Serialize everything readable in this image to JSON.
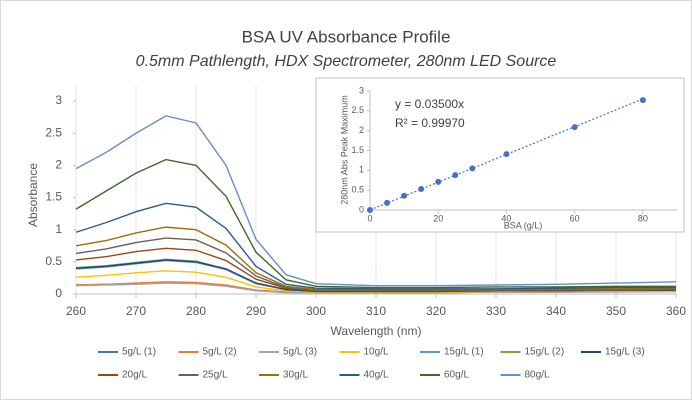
{
  "chart_data": [
    {
      "type": "line",
      "title": "BSA UV Absorbance Profile",
      "subtitle": "0.5mm Pathlength, HDX Spectrometer, 280nm LED Source",
      "x_label": "Wavelength (nm)",
      "y_label": "Absorbance",
      "x": [
        260,
        265,
        270,
        275,
        280,
        285,
        290,
        295,
        300,
        310,
        320,
        330,
        340,
        350,
        360
      ],
      "xlim": [
        260,
        360
      ],
      "xticks": [
        260,
        270,
        280,
        290,
        300,
        310,
        320,
        330,
        340,
        350,
        360
      ],
      "ylim": [
        0,
        3.25
      ],
      "yticks": [
        0,
        0.5,
        1,
        1.5,
        2,
        2.5,
        3
      ],
      "grid": true,
      "series": [
        {
          "name": "5g/L (1)",
          "color": "#4472c4",
          "values": [
            0.14,
            0.15,
            0.16,
            0.18,
            0.17,
            0.13,
            0.06,
            0.03,
            0.02,
            0.02,
            0.02,
            0.03,
            0.03,
            0.04,
            0.04
          ]
        },
        {
          "name": "5g/L (2)",
          "color": "#ed7d31",
          "values": [
            0.14,
            0.15,
            0.17,
            0.19,
            0.18,
            0.14,
            0.06,
            0.03,
            0.02,
            0.02,
            0.02,
            0.03,
            0.03,
            0.04,
            0.04
          ]
        },
        {
          "name": "5g/L (3)",
          "color": "#a5a5a5",
          "values": [
            0.13,
            0.14,
            0.15,
            0.17,
            0.16,
            0.12,
            0.05,
            0.02,
            0.02,
            0.02,
            0.02,
            0.03,
            0.03,
            0.03,
            0.04
          ]
        },
        {
          "name": "10g/L",
          "color": "#ffc000",
          "values": [
            0.26,
            0.29,
            0.33,
            0.36,
            0.34,
            0.26,
            0.11,
            0.05,
            0.03,
            0.03,
            0.03,
            0.04,
            0.04,
            0.05,
            0.05
          ]
        },
        {
          "name": "15g/L (1)",
          "color": "#5b9bd5",
          "values": [
            0.39,
            0.42,
            0.47,
            0.52,
            0.49,
            0.38,
            0.16,
            0.07,
            0.04,
            0.04,
            0.04,
            0.05,
            0.05,
            0.06,
            0.06
          ]
        },
        {
          "name": "15g/L (2)",
          "color": "#70ad47",
          "values": [
            0.41,
            0.44,
            0.49,
            0.54,
            0.51,
            0.39,
            0.17,
            0.07,
            0.04,
            0.04,
            0.04,
            0.05,
            0.05,
            0.06,
            0.06
          ]
        },
        {
          "name": "15g/L (3)",
          "color": "#264478",
          "values": [
            0.4,
            0.43,
            0.48,
            0.53,
            0.5,
            0.39,
            0.17,
            0.07,
            0.04,
            0.04,
            0.04,
            0.05,
            0.05,
            0.06,
            0.06
          ]
        },
        {
          "name": "20g/L",
          "color": "#9e480e",
          "values": [
            0.53,
            0.58,
            0.66,
            0.71,
            0.68,
            0.52,
            0.23,
            0.09,
            0.05,
            0.05,
            0.05,
            0.05,
            0.06,
            0.06,
            0.07
          ]
        },
        {
          "name": "25g/L",
          "color": "#636363",
          "values": [
            0.63,
            0.7,
            0.8,
            0.87,
            0.84,
            0.64,
            0.28,
            0.1,
            0.06,
            0.06,
            0.06,
            0.06,
            0.07,
            0.07,
            0.08
          ]
        },
        {
          "name": "30g/L",
          "color": "#997300",
          "values": [
            0.75,
            0.83,
            0.95,
            1.04,
            1.0,
            0.76,
            0.33,
            0.12,
            0.07,
            0.07,
            0.07,
            0.07,
            0.08,
            0.08,
            0.09
          ]
        },
        {
          "name": "40g/L",
          "color": "#255e91",
          "values": [
            0.96,
            1.11,
            1.28,
            1.41,
            1.35,
            1.02,
            0.43,
            0.15,
            0.09,
            0.08,
            0.08,
            0.08,
            0.09,
            0.1,
            0.1
          ]
        },
        {
          "name": "60g/L",
          "color": "#43682b",
          "values": [
            1.32,
            1.6,
            1.88,
            2.09,
            2.0,
            1.52,
            0.65,
            0.22,
            0.12,
            0.1,
            0.1,
            0.11,
            0.11,
            0.12,
            0.12
          ]
        },
        {
          "name": "80g/L",
          "color": "#698ed0",
          "values": [
            1.95,
            2.2,
            2.5,
            2.77,
            2.66,
            2.0,
            0.85,
            0.3,
            0.16,
            0.13,
            0.13,
            0.14,
            0.15,
            0.17,
            0.19
          ]
        }
      ]
    },
    {
      "type": "scatter",
      "x_label": "BSA (g/L)",
      "y_label": "280nm Abs Peak Maximum",
      "equation": "y = 0.03500x",
      "r_squared": "R² = 0.99970",
      "trendline_slope": 0.035,
      "color": "#4472c4",
      "x": [
        0,
        5,
        10,
        15,
        20,
        25,
        30,
        40,
        60,
        80
      ],
      "values": [
        0,
        0.18,
        0.36,
        0.53,
        0.71,
        0.88,
        1.05,
        1.41,
        2.09,
        2.77
      ],
      "xlim": [
        0,
        90
      ],
      "xticks": [
        0,
        20,
        40,
        60,
        80
      ],
      "ylim": [
        0,
        3
      ],
      "yticks": [
        0,
        0.5,
        1,
        1.5,
        2,
        2.5,
        3
      ]
    }
  ]
}
